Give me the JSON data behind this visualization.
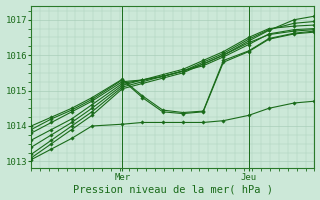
{
  "xlabel": "Pression niveau de la mer( hPa )",
  "bg_color": "#cce8d8",
  "grid_color": "#aacfba",
  "line_color": "#1a6b1a",
  "marker": "D",
  "markersize": 1.8,
  "linewidth": 0.8,
  "ylim": [
    1012.8,
    1017.4
  ],
  "xlim": [
    0,
    56
  ],
  "mer_x": 18,
  "jeu_x": 43,
  "tick_label_color": "#1a6b1a",
  "tick_label_fontsize": 6.5,
  "xlabel_fontsize": 7.5,
  "series": [
    {
      "x": [
        0,
        4,
        8,
        12,
        18,
        22,
        26,
        30,
        34,
        38,
        43,
        47,
        52,
        56
      ],
      "y": [
        1013.1,
        1013.5,
        1013.9,
        1014.3,
        1015.05,
        1015.2,
        1015.35,
        1015.5,
        1015.75,
        1016.0,
        1016.4,
        1016.7,
        1017.0,
        1017.1
      ]
    },
    {
      "x": [
        0,
        4,
        8,
        12,
        18,
        22,
        26,
        30,
        34,
        38,
        43,
        47,
        52,
        56
      ],
      "y": [
        1013.2,
        1013.6,
        1014.0,
        1014.4,
        1015.1,
        1015.25,
        1015.4,
        1015.55,
        1015.8,
        1016.05,
        1016.45,
        1016.72,
        1016.9,
        1016.95
      ]
    },
    {
      "x": [
        0,
        4,
        8,
        12,
        18,
        22,
        26,
        30,
        34,
        38,
        43,
        47,
        52,
        56
      ],
      "y": [
        1013.4,
        1013.75,
        1014.1,
        1014.5,
        1015.15,
        1015.3,
        1015.45,
        1015.6,
        1015.85,
        1016.1,
        1016.5,
        1016.75,
        1016.82,
        1016.85
      ]
    },
    {
      "x": [
        0,
        4,
        8,
        12,
        18,
        22,
        26,
        30,
        34,
        38,
        43,
        47,
        52,
        56
      ],
      "y": [
        1013.6,
        1013.9,
        1014.2,
        1014.6,
        1015.2,
        1015.3,
        1015.4,
        1015.55,
        1015.7,
        1015.95,
        1016.3,
        1016.6,
        1016.72,
        1016.75
      ]
    },
    {
      "x": [
        0,
        4,
        8,
        12,
        18,
        22,
        26,
        30,
        34,
        38,
        43,
        47,
        52,
        56
      ],
      "y": [
        1013.8,
        1014.1,
        1014.4,
        1014.7,
        1015.25,
        1015.3,
        1015.4,
        1015.55,
        1015.75,
        1016.0,
        1016.35,
        1016.58,
        1016.68,
        1016.72
      ]
    },
    {
      "x": [
        0,
        4,
        8,
        12,
        18,
        22,
        26,
        30,
        34,
        38,
        43,
        47,
        52,
        56
      ],
      "y": [
        1013.05,
        1013.35,
        1013.65,
        1014.0,
        1014.05,
        1014.1,
        1014.1,
        1014.1,
        1014.1,
        1014.15,
        1014.3,
        1014.5,
        1014.65,
        1014.7
      ]
    },
    {
      "x": [
        0,
        4,
        8,
        12,
        18,
        22,
        26,
        30,
        34,
        38,
        43,
        47,
        52,
        56
      ],
      "y": [
        1013.9,
        1014.2,
        1014.45,
        1014.75,
        1015.3,
        1014.8,
        1014.4,
        1014.35,
        1014.4,
        1015.8,
        1016.1,
        1016.45,
        1016.6,
        1016.65
      ]
    },
    {
      "x": [
        0,
        4,
        8,
        12,
        18,
        22,
        26,
        30,
        34,
        38,
        43,
        47,
        52,
        56
      ],
      "y": [
        1014.0,
        1014.25,
        1014.5,
        1014.8,
        1015.32,
        1014.85,
        1014.45,
        1014.38,
        1014.42,
        1015.85,
        1016.12,
        1016.47,
        1016.62,
        1016.68
      ]
    }
  ]
}
